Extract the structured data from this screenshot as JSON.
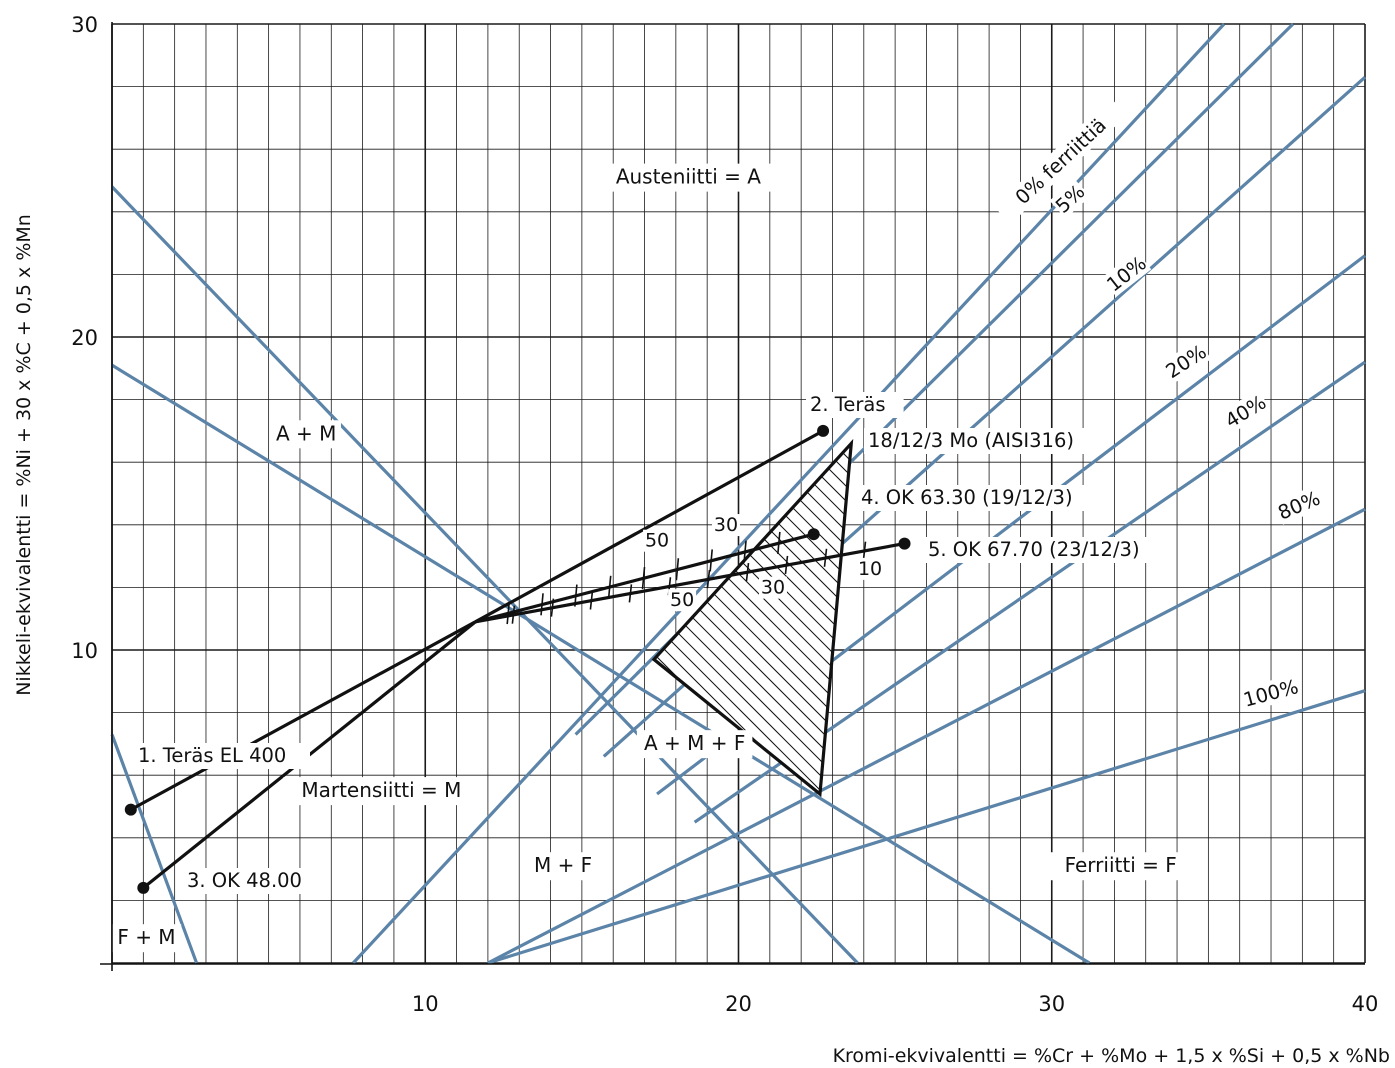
{
  "chart_data": {
    "type": "scatter",
    "title": "",
    "xlabel": "Kromi-ekvivalentti = %Cr + %Mo + 1,5 x %Si + 0,5 x %Nb",
    "ylabel": "Nikkeli-ekvivalentti = %Ni + 30 x %C + 0,5 x %Mn",
    "xlim": [
      0,
      40
    ],
    "ylim": [
      0,
      30
    ],
    "x_ticks": [
      10,
      20,
      30,
      40
    ],
    "y_ticks": [
      10,
      20,
      30
    ],
    "grid": true,
    "colors": {
      "phase_lines": "#5b84a8",
      "material_lines": "#111111",
      "grid": "#1a1a1a"
    },
    "regions": [
      {
        "label": "Austeniitti = A",
        "x": 18.4,
        "y": 24.9
      },
      {
        "label": "A + M",
        "x": 6.2,
        "y": 16.7
      },
      {
        "label": "A + M + F",
        "x": 18.6,
        "y": 6.8
      },
      {
        "label": "Martensiitti = M",
        "x": 8.6,
        "y": 5.3
      },
      {
        "label": "M + F",
        "x": 14.4,
        "y": 2.9
      },
      {
        "label": "Ferriitti = F",
        "x": 32.2,
        "y": 2.9
      },
      {
        "label": "F + M",
        "x": 1.1,
        "y": 0.6
      }
    ],
    "ferrite_lines": [
      {
        "label": "0% ferriittiä",
        "label_x": 30.3,
        "label_y": 25.6,
        "angle": -43,
        "x": [
          7.7,
          35.5
        ],
        "y": [
          0.0,
          30.0
        ]
      },
      {
        "label": "5%",
        "label_x": 30.6,
        "label_y": 24.4,
        "angle": -42,
        "x": [
          14.8,
          37.7
        ],
        "y": [
          7.3,
          30.0
        ]
      },
      {
        "label": "10%",
        "label_x": 32.4,
        "label_y": 22.0,
        "angle": -38,
        "x": [
          15.7,
          40.0
        ],
        "y": [
          6.6,
          28.3
        ]
      },
      {
        "label": "20%",
        "label_x": 34.3,
        "label_y": 19.2,
        "angle": -33,
        "x": [
          17.4,
          40.0
        ],
        "y": [
          5.4,
          22.6
        ]
      },
      {
        "label": "40%",
        "label_x": 36.2,
        "label_y": 17.6,
        "angle": -31,
        "x": [
          18.6,
          40.0
        ],
        "y": [
          4.5,
          19.2
        ]
      },
      {
        "label": "80%",
        "label_x": 37.9,
        "label_y": 14.6,
        "angle": -23,
        "x": [
          12.0,
          40.0
        ],
        "y": [
          0.0,
          14.5
        ]
      },
      {
        "label": "100%",
        "label_x": 37.0,
        "label_y": 8.6,
        "angle": -15,
        "x": [
          12.0,
          40.0
        ],
        "y": [
          0.0,
          8.7
        ]
      }
    ],
    "boundary_lines": [
      {
        "x": [
          0.0,
          23.8
        ],
        "y": [
          24.8,
          0.0
        ]
      },
      {
        "x": [
          0.0,
          31.2
        ],
        "y": [
          19.1,
          0.0
        ]
      },
      {
        "x": [
          0.0,
          2.7
        ],
        "y": [
          7.3,
          0.0
        ]
      }
    ],
    "materials": [
      {
        "label": "1. Teräs EL 400",
        "x": 0.6,
        "y": 4.9
      },
      {
        "label": "2. Teräs",
        "x": 22.7,
        "y": 17.0
      },
      {
        "label": "18/12/3 Mo (AISI316)",
        "x": null,
        "y": null
      },
      {
        "label": "3. OK 48.00",
        "x": 1.0,
        "y": 2.4
      },
      {
        "label": "4. OK 63.30 (19/12/3)",
        "x": 22.4,
        "y": 13.7
      },
      {
        "label": "5. OK 67.70 (23/12/3)",
        "x": 25.3,
        "y": 13.4
      }
    ],
    "mix_point": {
      "x": 11.6,
      "y": 10.9
    },
    "shaded_region": {
      "x": [
        23.6,
        17.3,
        22.6
      ],
      "y": [
        16.6,
        9.7,
        5.4
      ]
    },
    "scale_labels": [
      {
        "label": "50",
        "x": 17.4,
        "y": 13.3
      },
      {
        "label": "30",
        "x": 19.6,
        "y": 13.8
      },
      {
        "label": "10",
        "x": 24.2,
        "y": 12.4
      },
      {
        "label": "50",
        "x": 18.2,
        "y": 11.4
      },
      {
        "label": "30",
        "x": 21.1,
        "y": 11.8
      }
    ]
  }
}
